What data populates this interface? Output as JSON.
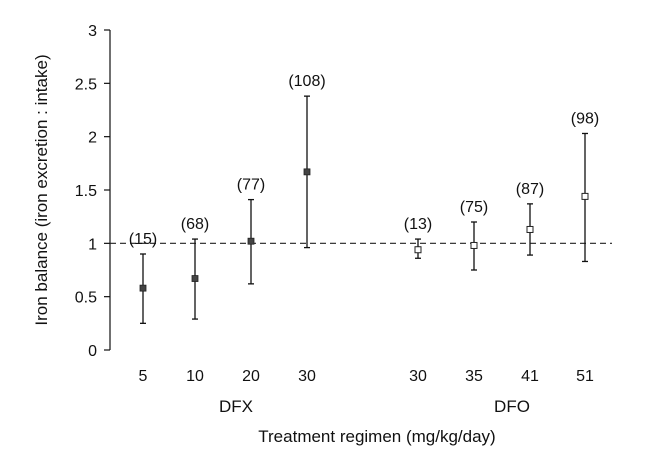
{
  "chart_data": {
    "type": "scatter",
    "ylabel": "Iron balance (iron excretion : intake)",
    "xlabel": "Treatment regimen (mg/kg/day)",
    "ylim": [
      0,
      3
    ],
    "yticks": [
      0,
      0.5,
      1,
      1.5,
      2,
      2.5,
      3
    ],
    "ytick_labels": [
      "0",
      "0.5",
      "1",
      "1.5",
      "2",
      "2.5",
      "3"
    ],
    "reference_line": {
      "y": 1,
      "style": "dashed"
    },
    "grid": false,
    "groups": [
      {
        "name": "DFX",
        "marker": "filled-square",
        "points": [
          {
            "dose": "5",
            "mean": 0.58,
            "low": 0.25,
            "high": 0.9,
            "n_label": "(15)"
          },
          {
            "dose": "10",
            "mean": 0.67,
            "low": 0.29,
            "high": 1.04,
            "n_label": "(68)"
          },
          {
            "dose": "20",
            "mean": 1.02,
            "low": 0.62,
            "high": 1.41,
            "n_label": "(77)"
          },
          {
            "dose": "30",
            "mean": 1.67,
            "low": 0.96,
            "high": 2.38,
            "n_label": "(108)"
          }
        ]
      },
      {
        "name": "DFO",
        "marker": "open-square",
        "points": [
          {
            "dose": "30",
            "mean": 0.94,
            "low": 0.86,
            "high": 1.04,
            "n_label": "(13)"
          },
          {
            "dose": "35",
            "mean": 0.98,
            "low": 0.75,
            "high": 1.2,
            "n_label": "(75)"
          },
          {
            "dose": "41",
            "mean": 1.13,
            "low": 0.89,
            "high": 1.37,
            "n_label": "(87)"
          },
          {
            "dose": "51",
            "mean": 1.44,
            "low": 0.83,
            "high": 2.03,
            "n_label": "(98)"
          }
        ]
      }
    ]
  }
}
